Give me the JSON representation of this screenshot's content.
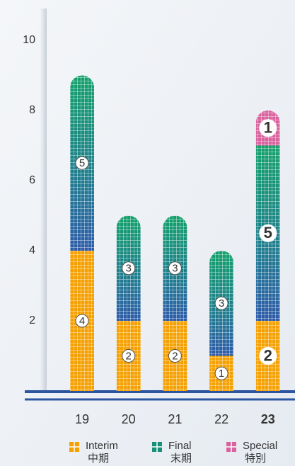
{
  "chart_data": {
    "type": "bar",
    "stacked": true,
    "categories": [
      "19",
      "20",
      "21",
      "22",
      "23"
    ],
    "series": [
      {
        "name": "Interim",
        "name_local": "中期",
        "color": "#f5a000",
        "values": [
          4,
          2,
          2,
          1,
          2
        ]
      },
      {
        "name": "Final",
        "name_local": "末期",
        "color": "#17907a",
        "values": [
          5,
          3,
          3,
          3,
          5
        ]
      },
      {
        "name": "Special",
        "name_local": "特別",
        "color": "#d9619e",
        "values": [
          null,
          null,
          null,
          null,
          1
        ]
      }
    ],
    "ylim": [
      0,
      10
    ],
    "yticks": [
      2,
      4,
      6,
      8,
      10
    ],
    "highlight_index": 4,
    "highlight_color": "#2b4f9e",
    "legend": "bottom"
  }
}
